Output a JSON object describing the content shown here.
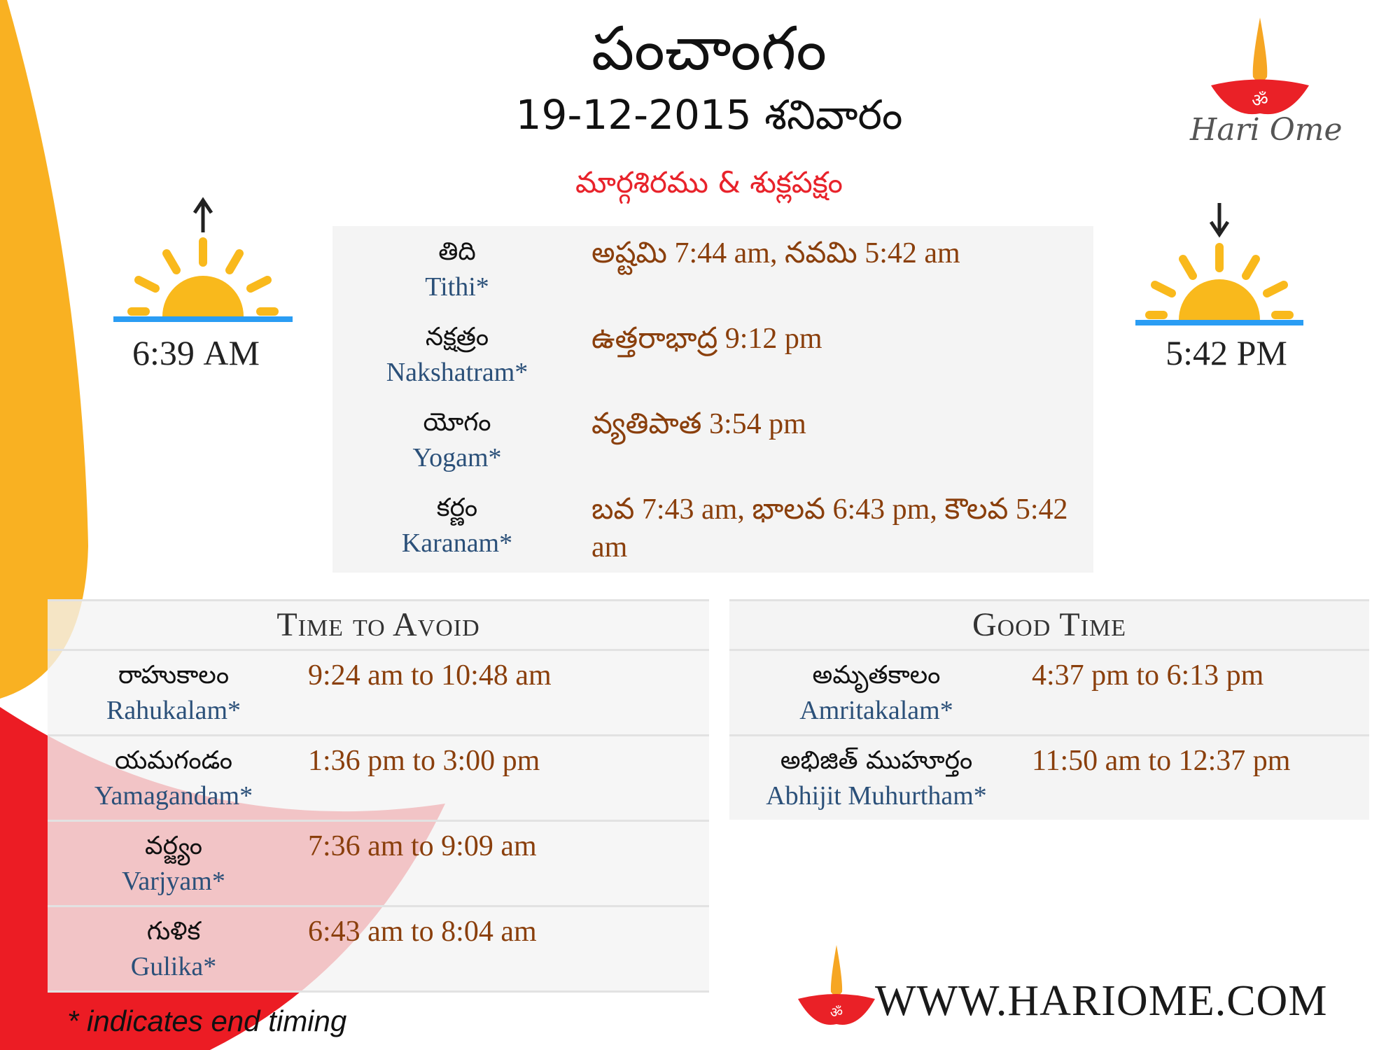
{
  "header": {
    "title": "పంచాంగం",
    "date": "19-12-2015 శనివారం",
    "month_paksha": "మార్గశిరము & శుక్లపక్షం"
  },
  "logo": {
    "text": "Hari Ome"
  },
  "sunrise": {
    "time": "6:39",
    "suffix": "AM",
    "icon": "sunrise-icon"
  },
  "sunset": {
    "time": "5:42",
    "suffix": "PM",
    "icon": "sunset-icon"
  },
  "panchang": [
    {
      "te": "తిది",
      "en": "Tithi*",
      "value": "అష్టమి 7:44 am, నవమి 5:42 am"
    },
    {
      "te": "నక్షత్రం",
      "en": "Nakshatram*",
      "value": "ఉత్తరాభాద్ర 9:12 pm"
    },
    {
      "te": "యోగం",
      "en": "Yogam*",
      "value": "వ్యతిపాత 3:54 pm"
    },
    {
      "te": "కర్ణం",
      "en": "Karanam*",
      "value": "బవ 7:43 am, భాలవ 6:43 pm, కౌలవ 5:42 am"
    }
  ],
  "avoid": {
    "title": "Time to Avoid",
    "rows": [
      {
        "te": "రాహుకాలం",
        "en": "Rahukalam*",
        "value": "9:24 am to 10:48 am"
      },
      {
        "te": "యమగండం",
        "en": "Yamagandam*",
        "value": "1:36 pm to 3:00 pm"
      },
      {
        "te": "వర్జ్యం",
        "en": "Varjyam*",
        "value": "7:36 am to 9:09 am"
      },
      {
        "te": "గుళిక",
        "en": "Gulika*",
        "value": "6:43 am to 8:04 am"
      }
    ]
  },
  "good": {
    "title": "Good Time",
    "rows": [
      {
        "te": "అమృతకాలం",
        "en": "Amritakalam*",
        "value": "4:37 pm to 6:13 pm"
      },
      {
        "te": "అభిజిత్ ముహూర్తం",
        "en": "Abhijit Muhurtham*",
        "value": "11:50 am to 12:37 pm"
      }
    ]
  },
  "footer": {
    "note": "* indicates end timing",
    "website": "WWW.HARIOME.COM"
  },
  "colors": {
    "orange": "#f9b122",
    "red": "#ec1c24",
    "value": "#8a3f0c",
    "english_label": "#2b5079",
    "sun": "#f9b91c",
    "horizon": "#2a9df4"
  }
}
